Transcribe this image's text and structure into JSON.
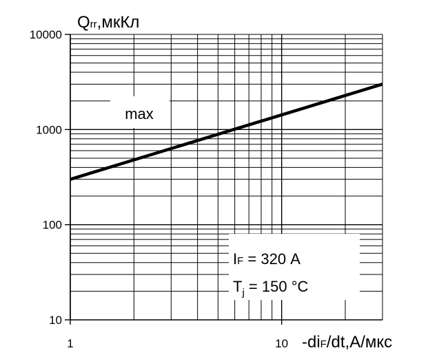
{
  "chart_data": {
    "type": "line",
    "x_scale": "log",
    "y_scale": "log",
    "xlim": [
      1,
      30
    ],
    "ylim": [
      10,
      10000
    ],
    "grid": true,
    "x_ticks": [
      "1",
      "10"
    ],
    "y_ticks": [
      "10",
      "100",
      "1000",
      "10000"
    ],
    "ylabel": {
      "main": "Q",
      "sub": "rr",
      "rest": ",мкКл"
    },
    "xlabel": {
      "pre": "-di",
      "sub": "F",
      "rest": "/dt,А/мкс"
    },
    "series": [
      {
        "name": "max",
        "x": [
          1,
          30
        ],
        "y": [
          300,
          3000
        ],
        "color": "#000000"
      }
    ],
    "annotations": {
      "line1": {
        "main": "I",
        "sub": "F",
        "rest": " = 320 А"
      },
      "line2": {
        "main": "T",
        "sub": "j",
        "rest": " = 150 °C"
      }
    }
  }
}
